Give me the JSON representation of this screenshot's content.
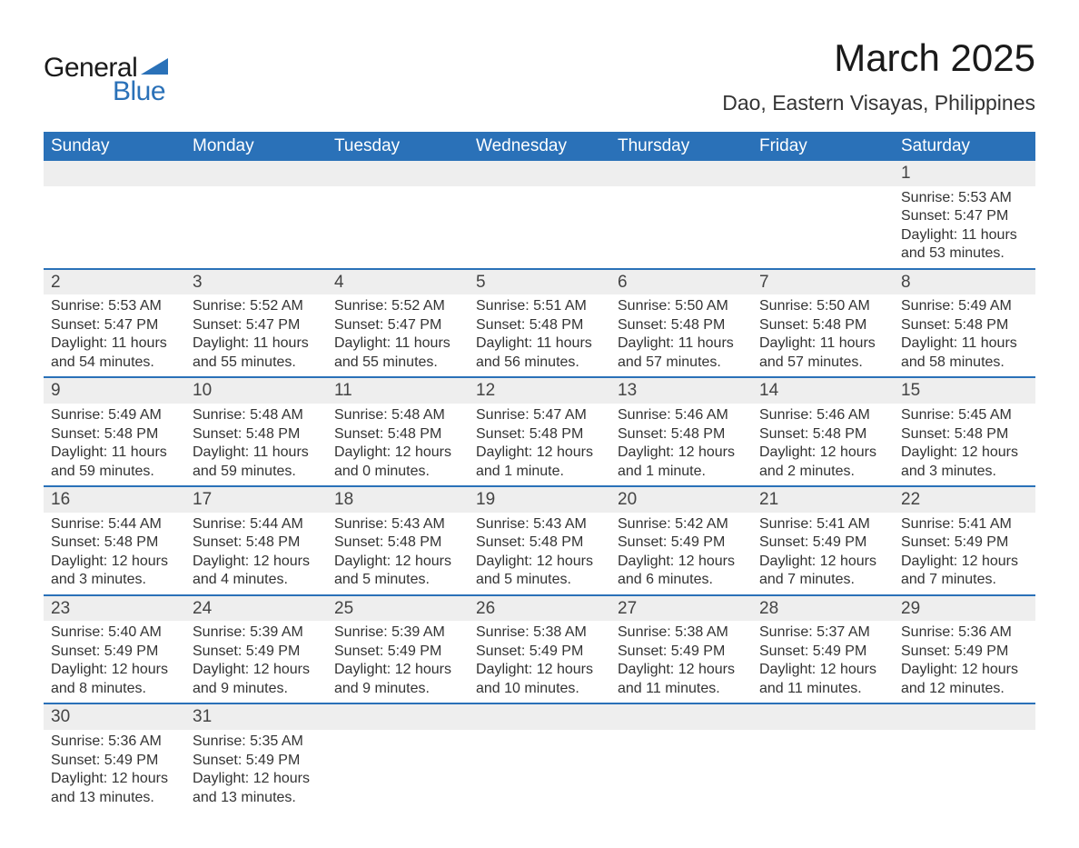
{
  "logo": {
    "general": "General",
    "blue": "Blue",
    "shape_color": "#2a71b8"
  },
  "header": {
    "month_title": "March 2025",
    "location": "Dao, Eastern Visayas, Philippines"
  },
  "day_headers": [
    "Sunday",
    "Monday",
    "Tuesday",
    "Wednesday",
    "Thursday",
    "Friday",
    "Saturday"
  ],
  "colors": {
    "header_bg": "#2a71b8",
    "header_text": "#ffffff",
    "daynum_bg": "#eeeeee",
    "row_border": "#2a71b8",
    "body_text": "#333333",
    "page_bg": "#ffffff"
  },
  "typography": {
    "month_title_fontsize": 42,
    "location_fontsize": 23,
    "day_header_fontsize": 19,
    "daynum_fontsize": 19,
    "daydata_fontsize": 16,
    "font_family": "Arial"
  },
  "weeks": [
    [
      null,
      null,
      null,
      null,
      null,
      null,
      {
        "n": "1",
        "sunrise": "5:53 AM",
        "sunset": "5:47 PM",
        "daylight": "11 hours and 53 minutes."
      }
    ],
    [
      {
        "n": "2",
        "sunrise": "5:53 AM",
        "sunset": "5:47 PM",
        "daylight": "11 hours and 54 minutes."
      },
      {
        "n": "3",
        "sunrise": "5:52 AM",
        "sunset": "5:47 PM",
        "daylight": "11 hours and 55 minutes."
      },
      {
        "n": "4",
        "sunrise": "5:52 AM",
        "sunset": "5:47 PM",
        "daylight": "11 hours and 55 minutes."
      },
      {
        "n": "5",
        "sunrise": "5:51 AM",
        "sunset": "5:48 PM",
        "daylight": "11 hours and 56 minutes."
      },
      {
        "n": "6",
        "sunrise": "5:50 AM",
        "sunset": "5:48 PM",
        "daylight": "11 hours and 57 minutes."
      },
      {
        "n": "7",
        "sunrise": "5:50 AM",
        "sunset": "5:48 PM",
        "daylight": "11 hours and 57 minutes."
      },
      {
        "n": "8",
        "sunrise": "5:49 AM",
        "sunset": "5:48 PM",
        "daylight": "11 hours and 58 minutes."
      }
    ],
    [
      {
        "n": "9",
        "sunrise": "5:49 AM",
        "sunset": "5:48 PM",
        "daylight": "11 hours and 59 minutes."
      },
      {
        "n": "10",
        "sunrise": "5:48 AM",
        "sunset": "5:48 PM",
        "daylight": "11 hours and 59 minutes."
      },
      {
        "n": "11",
        "sunrise": "5:48 AM",
        "sunset": "5:48 PM",
        "daylight": "12 hours and 0 minutes."
      },
      {
        "n": "12",
        "sunrise": "5:47 AM",
        "sunset": "5:48 PM",
        "daylight": "12 hours and 1 minute."
      },
      {
        "n": "13",
        "sunrise": "5:46 AM",
        "sunset": "5:48 PM",
        "daylight": "12 hours and 1 minute."
      },
      {
        "n": "14",
        "sunrise": "5:46 AM",
        "sunset": "5:48 PM",
        "daylight": "12 hours and 2 minutes."
      },
      {
        "n": "15",
        "sunrise": "5:45 AM",
        "sunset": "5:48 PM",
        "daylight": "12 hours and 3 minutes."
      }
    ],
    [
      {
        "n": "16",
        "sunrise": "5:44 AM",
        "sunset": "5:48 PM",
        "daylight": "12 hours and 3 minutes."
      },
      {
        "n": "17",
        "sunrise": "5:44 AM",
        "sunset": "5:48 PM",
        "daylight": "12 hours and 4 minutes."
      },
      {
        "n": "18",
        "sunrise": "5:43 AM",
        "sunset": "5:48 PM",
        "daylight": "12 hours and 5 minutes."
      },
      {
        "n": "19",
        "sunrise": "5:43 AM",
        "sunset": "5:48 PM",
        "daylight": "12 hours and 5 minutes."
      },
      {
        "n": "20",
        "sunrise": "5:42 AM",
        "sunset": "5:49 PM",
        "daylight": "12 hours and 6 minutes."
      },
      {
        "n": "21",
        "sunrise": "5:41 AM",
        "sunset": "5:49 PM",
        "daylight": "12 hours and 7 minutes."
      },
      {
        "n": "22",
        "sunrise": "5:41 AM",
        "sunset": "5:49 PM",
        "daylight": "12 hours and 7 minutes."
      }
    ],
    [
      {
        "n": "23",
        "sunrise": "5:40 AM",
        "sunset": "5:49 PM",
        "daylight": "12 hours and 8 minutes."
      },
      {
        "n": "24",
        "sunrise": "5:39 AM",
        "sunset": "5:49 PM",
        "daylight": "12 hours and 9 minutes."
      },
      {
        "n": "25",
        "sunrise": "5:39 AM",
        "sunset": "5:49 PM",
        "daylight": "12 hours and 9 minutes."
      },
      {
        "n": "26",
        "sunrise": "5:38 AM",
        "sunset": "5:49 PM",
        "daylight": "12 hours and 10 minutes."
      },
      {
        "n": "27",
        "sunrise": "5:38 AM",
        "sunset": "5:49 PM",
        "daylight": "12 hours and 11 minutes."
      },
      {
        "n": "28",
        "sunrise": "5:37 AM",
        "sunset": "5:49 PM",
        "daylight": "12 hours and 11 minutes."
      },
      {
        "n": "29",
        "sunrise": "5:36 AM",
        "sunset": "5:49 PM",
        "daylight": "12 hours and 12 minutes."
      }
    ],
    [
      {
        "n": "30",
        "sunrise": "5:36 AM",
        "sunset": "5:49 PM",
        "daylight": "12 hours and 13 minutes."
      },
      {
        "n": "31",
        "sunrise": "5:35 AM",
        "sunset": "5:49 PM",
        "daylight": "12 hours and 13 minutes."
      },
      null,
      null,
      null,
      null,
      null
    ]
  ],
  "labels": {
    "sunrise_prefix": "Sunrise: ",
    "sunset_prefix": "Sunset: ",
    "daylight_prefix": "Daylight: "
  }
}
